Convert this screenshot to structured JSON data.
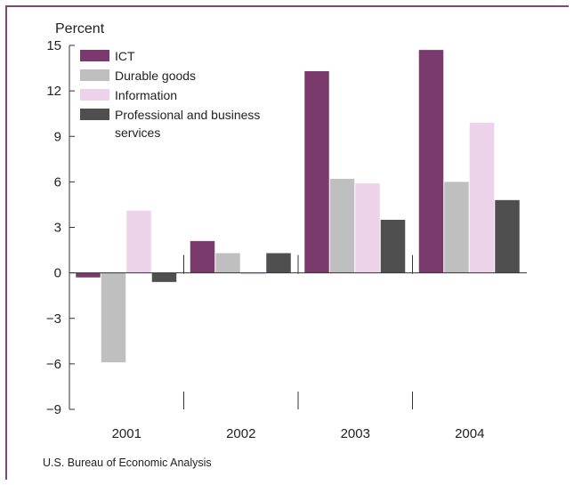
{
  "chart_data": {
    "type": "bar",
    "ylabel": "Percent",
    "xlabel": "",
    "categories": [
      "2001",
      "2002",
      "2003",
      "2004"
    ],
    "yticks": [
      15,
      12,
      9,
      6,
      3,
      0,
      -3,
      -6,
      -9
    ],
    "ytick_labels": [
      "15",
      "12",
      "9",
      "6",
      "3",
      "0",
      "−3",
      "−6",
      "−9"
    ],
    "ylim": [
      -9,
      15
    ],
    "grid": false,
    "legend_position": "top-left",
    "series": [
      {
        "name": "ICT",
        "color": "#7b3a6e",
        "values": [
          -0.3,
          2.1,
          13.3,
          14.7
        ]
      },
      {
        "name": "Durable goods",
        "color": "#bfbfbf",
        "values": [
          -5.9,
          1.3,
          6.2,
          6.0
        ]
      },
      {
        "name": "Information",
        "color": "#ecd3ea",
        "values": [
          4.1,
          -0.1,
          5.9,
          9.9
        ]
      },
      {
        "name": "Professional and business services",
        "color": "#4f4f4f",
        "values": [
          -0.6,
          1.3,
          3.5,
          4.8
        ]
      }
    ],
    "legend_lines": [
      [
        "ICT"
      ],
      [
        "Durable goods"
      ],
      [
        "Information"
      ],
      [
        "Professional and business",
        "services"
      ]
    ]
  },
  "source": "U.S. Bureau of Economic Analysis"
}
